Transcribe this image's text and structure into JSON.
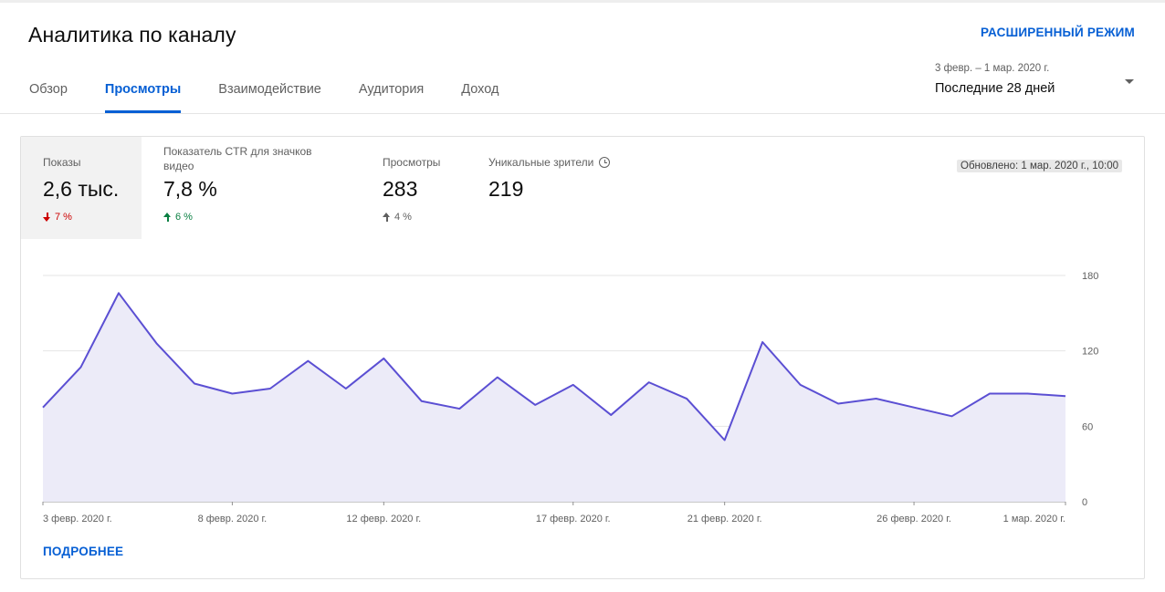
{
  "header": {
    "title": "Аналитика по каналу",
    "advanced_mode": "РАСШИРЕННЫЙ РЕЖИМ"
  },
  "tabs": [
    {
      "label": "Обзор",
      "active": false
    },
    {
      "label": "Просмотры",
      "active": true
    },
    {
      "label": "Взаимодействие",
      "active": false
    },
    {
      "label": "Аудитория",
      "active": false
    },
    {
      "label": "Доход",
      "active": false
    }
  ],
  "date_range": {
    "dates": "3 февр. – 1 мар. 2020 г.",
    "label": "Последние 28 дней",
    "icon": "caret-down-icon"
  },
  "metrics": [
    {
      "label": "Показы",
      "value": "2,6 тыс.",
      "change": "7 %",
      "direction": "down",
      "color": "#cc0000",
      "active": true
    },
    {
      "label": "Показатель CTR для значков видео",
      "value": "7,8 %",
      "change": "6 %",
      "direction": "up",
      "color": "#0b8043",
      "active": false
    },
    {
      "label": "Просмотры",
      "value": "283",
      "change": "4 %",
      "direction": "up",
      "color": "#606060",
      "active": false
    },
    {
      "label": "Уникальные зрители",
      "value": "219",
      "change": "",
      "direction": "",
      "color": "#606060",
      "active": false,
      "icon": "clock-icon"
    }
  ],
  "updated": "Обновлено: 1 мар. 2020 г., 10:00",
  "chart_data": {
    "type": "area",
    "x": [
      "3 февр. 2020 г.",
      "4 февр. 2020 г.",
      "5 февр. 2020 г.",
      "6 февр. 2020 г.",
      "7 февр. 2020 г.",
      "8 февр. 2020 г.",
      "9 февр. 2020 г.",
      "10 февр. 2020 г.",
      "11 февр. 2020 г.",
      "12 февр. 2020 г.",
      "13 февр. 2020 г.",
      "14 февр. 2020 г.",
      "15 февр. 2020 г.",
      "16 февр. 2020 г.",
      "17 февр. 2020 г.",
      "18 февр. 2020 г.",
      "19 февр. 2020 г.",
      "20 февр. 2020 г.",
      "21 февр. 2020 г.",
      "22 февр. 2020 г.",
      "23 февр. 2020 г.",
      "24 февр. 2020 г.",
      "25 февр. 2020 г.",
      "26 февр. 2020 г.",
      "27 февр. 2020 г.",
      "28 февр. 2020 г.",
      "29 февр. 2020 г.",
      "1 мар. 2020 г."
    ],
    "series": [
      {
        "values": [
          75,
          107,
          166,
          126,
          94,
          86,
          90,
          112,
          90,
          114,
          80,
          74,
          99,
          77,
          93,
          69,
          95,
          82,
          49,
          127,
          93,
          78,
          82,
          75,
          68,
          86,
          86,
          84
        ]
      }
    ],
    "x_tick_labels": [
      "3 февр. 2020 г.",
      "8 февр. 2020 г.",
      "12 февр. 2020 г.",
      "17 февр. 2020 г.",
      "21 февр. 2020 г.",
      "26 февр. 2020 г.",
      "1 мар. 2020 г."
    ],
    "x_tick_indices": [
      0,
      5,
      9,
      14,
      18,
      23,
      27
    ],
    "y_ticks": [
      0,
      60,
      120,
      180
    ],
    "ylim": [
      0,
      180
    ],
    "grid": true,
    "line_color": "#5b4fd3",
    "fill_color": "#ecebf8"
  },
  "more_link": "ПОДРОБНЕЕ"
}
